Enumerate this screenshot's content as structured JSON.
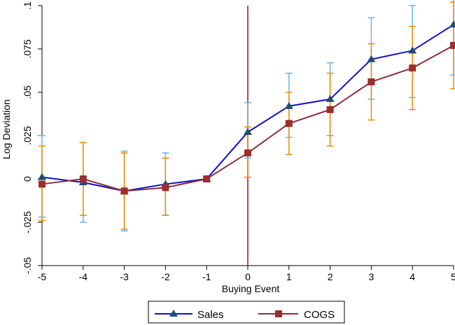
{
  "chart_data": {
    "type": "line",
    "title": "",
    "xlabel": "Buying Event",
    "ylabel": "Log Deviation",
    "xlim": [
      -5,
      5
    ],
    "ylim": [
      -0.05,
      0.1
    ],
    "x": [
      -5,
      -4,
      -3,
      -2,
      -1,
      0,
      1,
      2,
      3,
      4,
      5
    ],
    "xticks": [
      -5,
      -4,
      -3,
      -2,
      -1,
      0,
      1,
      2,
      3,
      4,
      5
    ],
    "yticks": [
      -0.05,
      -0.025,
      0,
      0.025,
      0.05,
      0.075,
      0.1
    ],
    "ytick_labels": [
      "-.05",
      "-.025",
      "0",
      ".025",
      ".05",
      ".075",
      ".1"
    ],
    "event_line_x": 0,
    "grid": false,
    "legend_position": "bottom",
    "series": [
      {
        "name": "Sales",
        "color": "#1010c8",
        "ci_color": "#6ab4e8",
        "marker": "triangle",
        "marker_color": "#1b4f72",
        "values": [
          0.001,
          -0.002,
          -0.007,
          -0.003,
          0.0,
          0.027,
          0.042,
          0.046,
          0.069,
          0.074,
          0.089
        ],
        "ci_low": [
          -0.022,
          -0.025,
          -0.03,
          -0.021,
          0.0,
          0.012,
          0.024,
          0.025,
          0.046,
          0.047,
          0.06
        ],
        "ci_high": [
          0.025,
          0.021,
          0.016,
          0.015,
          0.0,
          0.044,
          0.061,
          0.067,
          0.093,
          0.1,
          0.118
        ]
      },
      {
        "name": "COGS",
        "color": "#8b2e3a",
        "ci_color": "#f08a00",
        "marker": "square",
        "marker_color": "#9b2d2d",
        "values": [
          -0.003,
          0.0,
          -0.007,
          -0.005,
          0.0,
          0.015,
          0.032,
          0.04,
          0.056,
          0.064,
          0.077
        ],
        "ci_low": [
          -0.024,
          -0.021,
          -0.029,
          -0.021,
          0.0,
          0.001,
          0.014,
          0.019,
          0.034,
          0.04,
          0.052
        ],
        "ci_high": [
          0.019,
          0.021,
          0.015,
          0.012,
          0.0,
          0.03,
          0.05,
          0.061,
          0.078,
          0.088,
          0.102
        ]
      }
    ]
  }
}
